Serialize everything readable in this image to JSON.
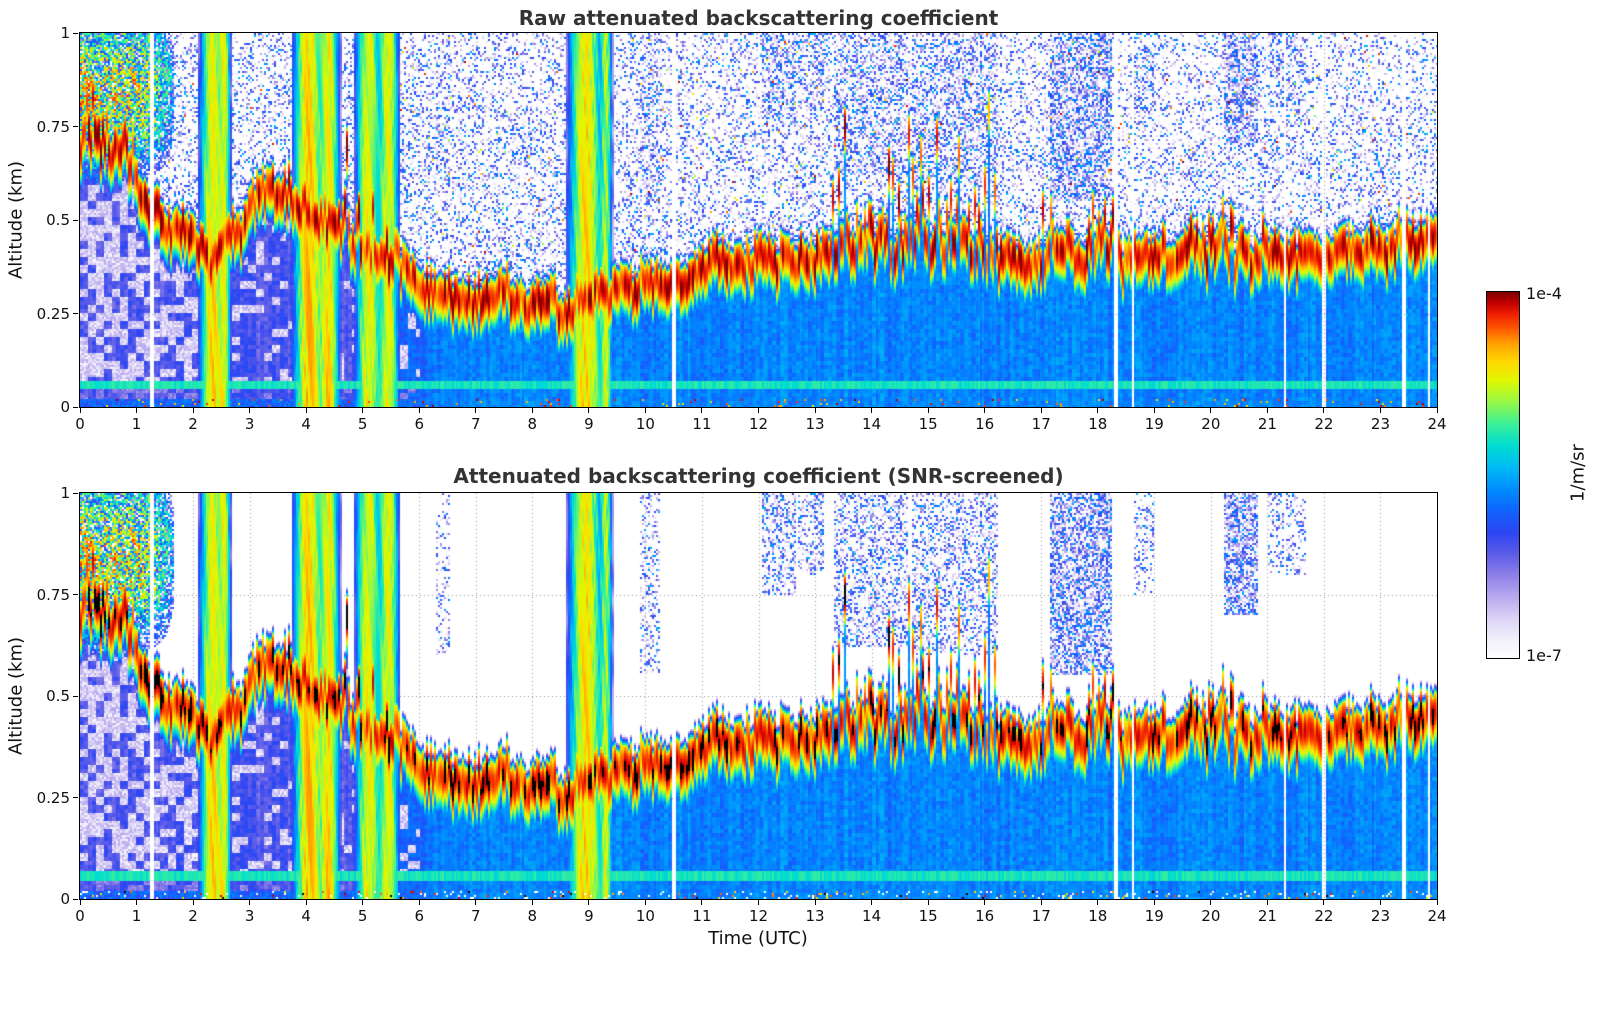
{
  "figure": {
    "panels": [
      {
        "title": "Raw attenuated backscattering coefficient"
      },
      {
        "title": "Attenuated backscattering coefficient (SNR-screened)"
      }
    ],
    "x_axis": {
      "label": "Time (UTC)",
      "ticks": [
        "0",
        "1",
        "2",
        "3",
        "4",
        "5",
        "6",
        "7",
        "8",
        "9",
        "10",
        "11",
        "12",
        "13",
        "14",
        "15",
        "16",
        "17",
        "18",
        "19",
        "20",
        "21",
        "22",
        "23",
        "24"
      ]
    },
    "y_axis": {
      "label": "Altitude (km)",
      "ticks": [
        "0",
        "0.25",
        "0.5",
        "0.75",
        "1"
      ]
    },
    "colorbar": {
      "top_label": "1e-4",
      "bottom_label": "1e-7",
      "unit": "1/m/sr"
    }
  },
  "chart_data": {
    "type": "heatmap",
    "x_range_hours": [
      0,
      24
    ],
    "y_range_km": [
      0,
      1
    ],
    "value_min": 1e-07,
    "value_max": 0.0001,
    "log_scale": true,
    "layer_top_km": [
      [
        0,
        0.72
      ],
      [
        0.4,
        0.74
      ],
      [
        0.8,
        0.68
      ],
      [
        1.2,
        0.6
      ],
      [
        1.6,
        0.53
      ],
      [
        2.0,
        0.5
      ],
      [
        2.3,
        0.43
      ],
      [
        2.6,
        0.47
      ],
      [
        3.0,
        0.55
      ],
      [
        3.3,
        0.62
      ],
      [
        3.7,
        0.6
      ],
      [
        4.1,
        0.56
      ],
      [
        4.5,
        0.52
      ],
      [
        5.0,
        0.47
      ],
      [
        5.5,
        0.43
      ],
      [
        6.0,
        0.38
      ],
      [
        6.5,
        0.35
      ],
      [
        7.0,
        0.33
      ],
      [
        7.5,
        0.34
      ],
      [
        8.0,
        0.33
      ],
      [
        8.6,
        0.3
      ],
      [
        9.0,
        0.33
      ],
      [
        9.5,
        0.36
      ],
      [
        10.0,
        0.38
      ],
      [
        10.5,
        0.39
      ],
      [
        11.0,
        0.41
      ],
      [
        11.5,
        0.42
      ],
      [
        12.0,
        0.43
      ],
      [
        12.5,
        0.44
      ],
      [
        13.0,
        0.45
      ],
      [
        13.5,
        0.46
      ],
      [
        14.0,
        0.47
      ],
      [
        14.5,
        0.47
      ],
      [
        15.0,
        0.47
      ],
      [
        15.5,
        0.46
      ],
      [
        16.0,
        0.46
      ],
      [
        16.5,
        0.44
      ],
      [
        17.0,
        0.43
      ],
      [
        17.5,
        0.44
      ],
      [
        18.0,
        0.46
      ],
      [
        18.5,
        0.45
      ],
      [
        19.0,
        0.45
      ],
      [
        19.5,
        0.45
      ],
      [
        20.0,
        0.46
      ],
      [
        20.5,
        0.45
      ],
      [
        21.0,
        0.45
      ],
      [
        21.5,
        0.46
      ],
      [
        22.0,
        0.45
      ],
      [
        22.5,
        0.46
      ],
      [
        23.0,
        0.48
      ],
      [
        23.5,
        0.5
      ],
      [
        24,
        0.52
      ]
    ],
    "plumes": [
      {
        "t": 2.35,
        "w": 0.3,
        "s": 1.0
      },
      {
        "t": 2.55,
        "w": 0.15,
        "s": 0.8
      },
      {
        "t": 4.05,
        "w": 0.35,
        "s": 1.15
      },
      {
        "t": 4.4,
        "w": 0.25,
        "s": 1.0
      },
      {
        "t": 5.1,
        "w": 0.3,
        "s": 0.9
      },
      {
        "t": 5.45,
        "w": 0.25,
        "s": 0.85
      },
      {
        "t": 8.95,
        "w": 0.4,
        "s": 1.1
      },
      {
        "t": 9.3,
        "w": 0.15,
        "s": 0.7
      }
    ],
    "data_gaps": [
      {
        "t": 1.27,
        "w": 0.05
      },
      {
        "t": 10.5,
        "w": 0.05
      },
      {
        "t": 18.33,
        "w": 0.06
      },
      {
        "t": 18.62,
        "w": 0.05
      },
      {
        "t": 21.32,
        "w": 0.05
      },
      {
        "t": 22.0,
        "w": 0.04
      },
      {
        "t": 23.42,
        "w": 0.06
      },
      {
        "t": 23.85,
        "w": 0.04
      }
    ],
    "cloud_regions": [
      {
        "t0": 6.3,
        "t1": 6.55,
        "z0": 0.6,
        "z1": 1.0,
        "density": 0.3
      },
      {
        "t0": 9.9,
        "t1": 10.25,
        "z0": 0.55,
        "z1": 1.0,
        "density": 0.35
      },
      {
        "t0": 12.05,
        "t1": 12.65,
        "z0": 0.75,
        "z1": 1.0,
        "density": 0.5
      },
      {
        "t0": 12.7,
        "t1": 13.15,
        "z0": 0.8,
        "z1": 1.0,
        "density": 0.45
      },
      {
        "t0": 13.35,
        "t1": 14.65,
        "z0": 0.62,
        "z1": 1.0,
        "density": 0.5
      },
      {
        "t0": 14.7,
        "t1": 16.25,
        "z0": 0.6,
        "z1": 1.0,
        "density": 0.45
      },
      {
        "t0": 17.15,
        "t1": 18.25,
        "z0": 0.55,
        "z1": 1.0,
        "density": 0.8
      },
      {
        "t0": 18.6,
        "t1": 19.0,
        "z0": 0.75,
        "z1": 1.0,
        "density": 0.3
      },
      {
        "t0": 20.25,
        "t1": 20.85,
        "z0": 0.7,
        "z1": 1.0,
        "density": 0.8
      },
      {
        "t0": 21.0,
        "t1": 21.7,
        "z0": 0.8,
        "z1": 1.0,
        "density": 0.35
      }
    ],
    "elevated_layer": {
      "t_end": 1.7,
      "center_km": 0.84,
      "halfwidth_km": 0.13
    },
    "spiky_regions": [
      {
        "t0": 0.0,
        "t1": 1.0,
        "amp": 0.15
      },
      {
        "t0": 4.6,
        "t1": 5.7,
        "amp": 0.22
      },
      {
        "t0": 13.3,
        "t1": 16.3,
        "amp": 0.35
      },
      {
        "t0": 16.9,
        "t1": 18.3,
        "amp": 0.18
      },
      {
        "t0": 19.5,
        "t1": 21.0,
        "amp": 0.12
      }
    ],
    "surface_stripe_km": [
      0.046,
      0.068
    ],
    "colormap_stops": [
      [
        0.0,
        "#ffffff"
      ],
      [
        0.05,
        "#f2effb"
      ],
      [
        0.1,
        "#ded7f6"
      ],
      [
        0.16,
        "#bcaef0"
      ],
      [
        0.22,
        "#9283e8"
      ],
      [
        0.28,
        "#5f5fe8"
      ],
      [
        0.34,
        "#2e45f2"
      ],
      [
        0.4,
        "#1262ff"
      ],
      [
        0.46,
        "#008cff"
      ],
      [
        0.52,
        "#00baf5"
      ],
      [
        0.58,
        "#00dcd2"
      ],
      [
        0.64,
        "#3cf096"
      ],
      [
        0.7,
        "#96f846"
      ],
      [
        0.76,
        "#e2f800"
      ],
      [
        0.81,
        "#ffd800"
      ],
      [
        0.86,
        "#ffa000"
      ],
      [
        0.9,
        "#ff5a00"
      ],
      [
        0.94,
        "#f02000"
      ],
      [
        0.97,
        "#c40000"
      ],
      [
        1.0,
        "#7e0000"
      ]
    ]
  }
}
